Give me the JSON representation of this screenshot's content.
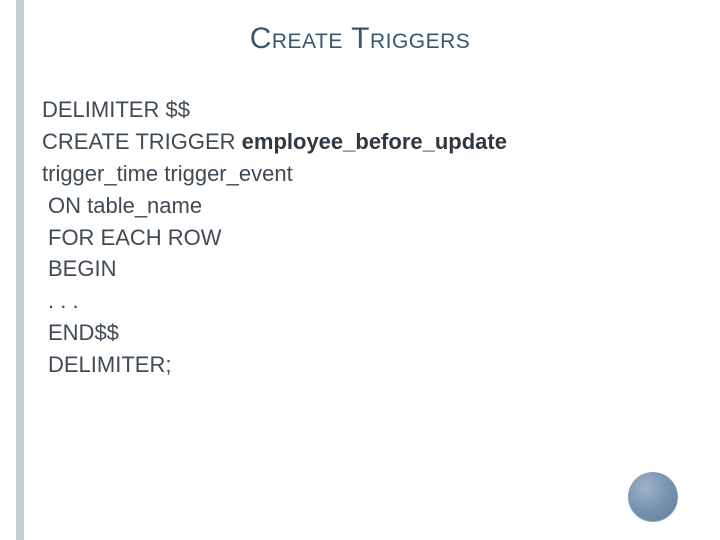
{
  "slide": {
    "title": "Create Triggers",
    "accent_color": "#c9cdd4",
    "title_color": "#3b5570",
    "text_color": "#404a54",
    "background_color": "#ffffff",
    "title_fontsize": 30,
    "body_fontsize": 22,
    "code": {
      "l1": "DELIMITER $$",
      "l2a": "CREATE TRIGGER ",
      "l2b": "employee_before_update",
      "l3": "trigger_time trigger_event",
      "l4": " ON table_name",
      "l5": " FOR EACH ROW",
      "l6": " BEGIN",
      "l7": " . . .",
      "l8": " END$$",
      "l9": " DELIMITER;"
    },
    "decoration": {
      "circle_gradient_from": "#9fb3c9",
      "circle_gradient_to": "#5f7c99"
    }
  }
}
